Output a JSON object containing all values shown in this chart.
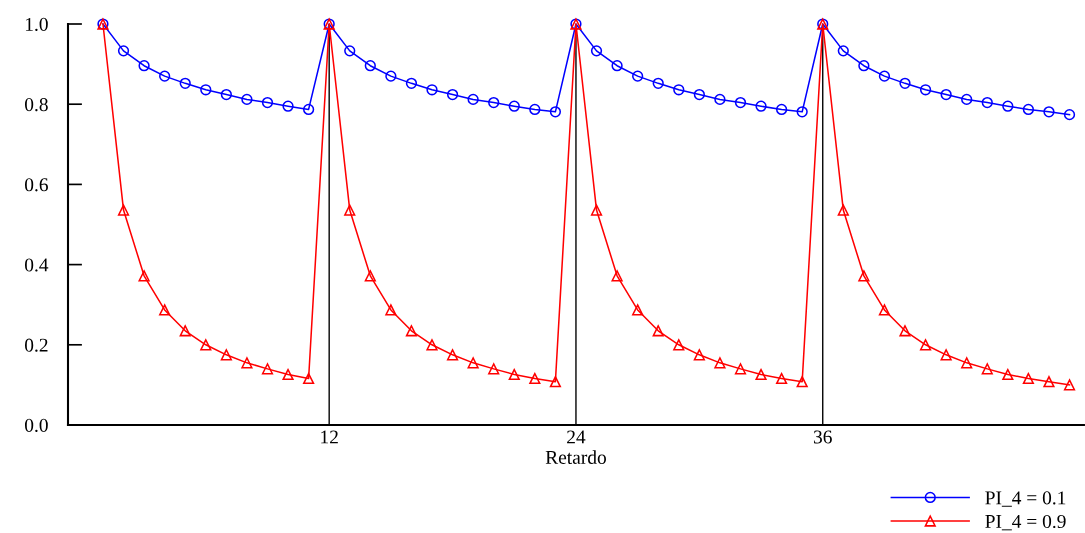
{
  "chart_data": {
    "type": "line",
    "xlabel": "Retardo",
    "x": [
      1,
      2,
      3,
      4,
      5,
      6,
      7,
      8,
      9,
      10,
      11,
      12,
      13,
      14,
      15,
      16,
      17,
      18,
      19,
      20,
      21,
      22,
      23,
      24,
      25,
      26,
      27,
      28,
      29,
      30,
      31,
      32,
      33,
      34,
      35,
      36,
      37,
      38,
      39,
      40,
      41,
      42,
      43,
      44,
      45,
      46,
      47,
      48
    ],
    "series": [
      {
        "name": "PI_4 = 0.1",
        "color": "#0000ff",
        "marker": "circle",
        "values": [
          1.0,
          0.933,
          0.896,
          0.87,
          0.852,
          0.836,
          0.824,
          0.812,
          0.804,
          0.795,
          0.787,
          1.0,
          0.933,
          0.896,
          0.87,
          0.852,
          0.836,
          0.824,
          0.812,
          0.804,
          0.795,
          0.787,
          0.781,
          1.0,
          0.933,
          0.896,
          0.87,
          0.852,
          0.836,
          0.824,
          0.812,
          0.804,
          0.795,
          0.787,
          0.781,
          1.0,
          0.933,
          0.896,
          0.87,
          0.852,
          0.836,
          0.824,
          0.812,
          0.804,
          0.795,
          0.787,
          0.781,
          0.774
        ]
      },
      {
        "name": "PI_4 = 0.9",
        "color": "#ff0000",
        "marker": "triangle",
        "values": [
          1.0,
          0.536,
          0.372,
          0.287,
          0.235,
          0.2,
          0.175,
          0.155,
          0.14,
          0.126,
          0.116,
          1.0,
          0.536,
          0.372,
          0.287,
          0.235,
          0.2,
          0.175,
          0.155,
          0.14,
          0.126,
          0.116,
          0.108,
          1.0,
          0.536,
          0.372,
          0.287,
          0.235,
          0.2,
          0.175,
          0.155,
          0.14,
          0.126,
          0.116,
          0.108,
          1.0,
          0.536,
          0.372,
          0.287,
          0.235,
          0.2,
          0.175,
          0.155,
          0.14,
          0.126,
          0.116,
          0.108,
          0.1
        ]
      }
    ],
    "xlim": [
      -0.7,
      48.7
    ],
    "xticks": [
      12,
      24,
      36
    ],
    "ylim": [
      0,
      1.0
    ],
    "yticks": [
      {
        "value": 0,
        "label": "0.0"
      },
      {
        "value": 0.2,
        "label": "0.2"
      },
      {
        "value": 0.4,
        "label": "0.4"
      },
      {
        "value": 0.6,
        "label": "0.6"
      },
      {
        "value": 0.8,
        "label": "0.8"
      },
      {
        "value": 1.0,
        "label": "1.0"
      }
    ],
    "ref_lines": [
      {
        "axis": "x",
        "value": 12,
        "color": "#000000"
      },
      {
        "axis": "x",
        "value": 24,
        "color": "#000000"
      },
      {
        "axis": "x",
        "value": 36,
        "color": "#000000"
      }
    ],
    "grid": false,
    "legend": "bottom right"
  }
}
